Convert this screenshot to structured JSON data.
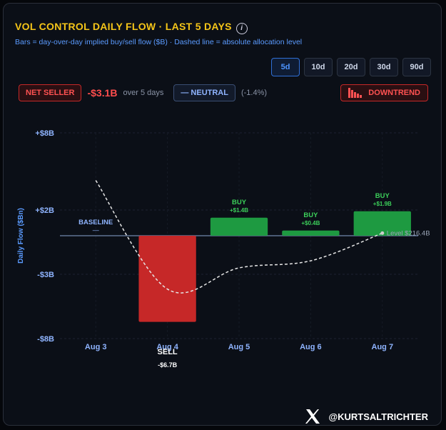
{
  "header": {
    "title": "VOL CONTROL DAILY FLOW · LAST 5 DAYS",
    "info": "i",
    "subtitle": "Bars = day-over-day implied buy/sell flow ($B) · Dashed line = absolute allocation level",
    "ranges": [
      "5d",
      "10d",
      "20d",
      "30d",
      "90d"
    ],
    "active_range": "5d",
    "badges": {
      "position": "NET SELLER",
      "net_flow": "-$3.1B",
      "period": "over 5 days",
      "trend_state": "— NEUTRAL",
      "trend_change": "(-1.4%)",
      "direction": "DOWNTREND"
    }
  },
  "chart_data": {
    "type": "bar",
    "y_label": "Daily Flow ($Bn)",
    "categories": [
      "Aug 3",
      "Aug 4",
      "Aug 5",
      "Aug 6",
      "Aug 7"
    ],
    "ylim": [
      -8,
      8
    ],
    "yticks": [
      {
        "value": 8,
        "label": "+$8B"
      },
      {
        "value": 2,
        "label": "+$2B"
      },
      {
        "value": -3,
        "label": "-$3B"
      },
      {
        "value": -8,
        "label": "-$8B"
      }
    ],
    "grid": true,
    "series": [
      {
        "name": "Daily Flow",
        "type": "bar",
        "values": [
          null,
          -6.7,
          1.4,
          0.4,
          1.9
        ],
        "value_labels": [
          null,
          "-$6.7B",
          "+$1.4B",
          "+$0.4B",
          "+$1.9B"
        ],
        "bar_labels": [
          null,
          "SELL",
          "BUY",
          "BUY",
          "BUY"
        ],
        "colors": {
          "positive": "#1e9a41",
          "negative": "#c62828"
        }
      },
      {
        "name": "Allocation Level",
        "type": "line",
        "axis": "y2",
        "dashed": true,
        "color": "#e6e6e6",
        "values": [
          224.6,
          207.7,
          211.0,
          212.1,
          216.4
        ],
        "value_labels": [
          null,
          null,
          null,
          null,
          "Level $216.4B"
        ]
      }
    ],
    "y2lim": [
      200,
      232
    ],
    "annotations": [
      {
        "text": "BASELINE",
        "mark": "—",
        "value": 0
      }
    ]
  },
  "footer": {
    "handle": "@KURTSALTRICHTER"
  }
}
